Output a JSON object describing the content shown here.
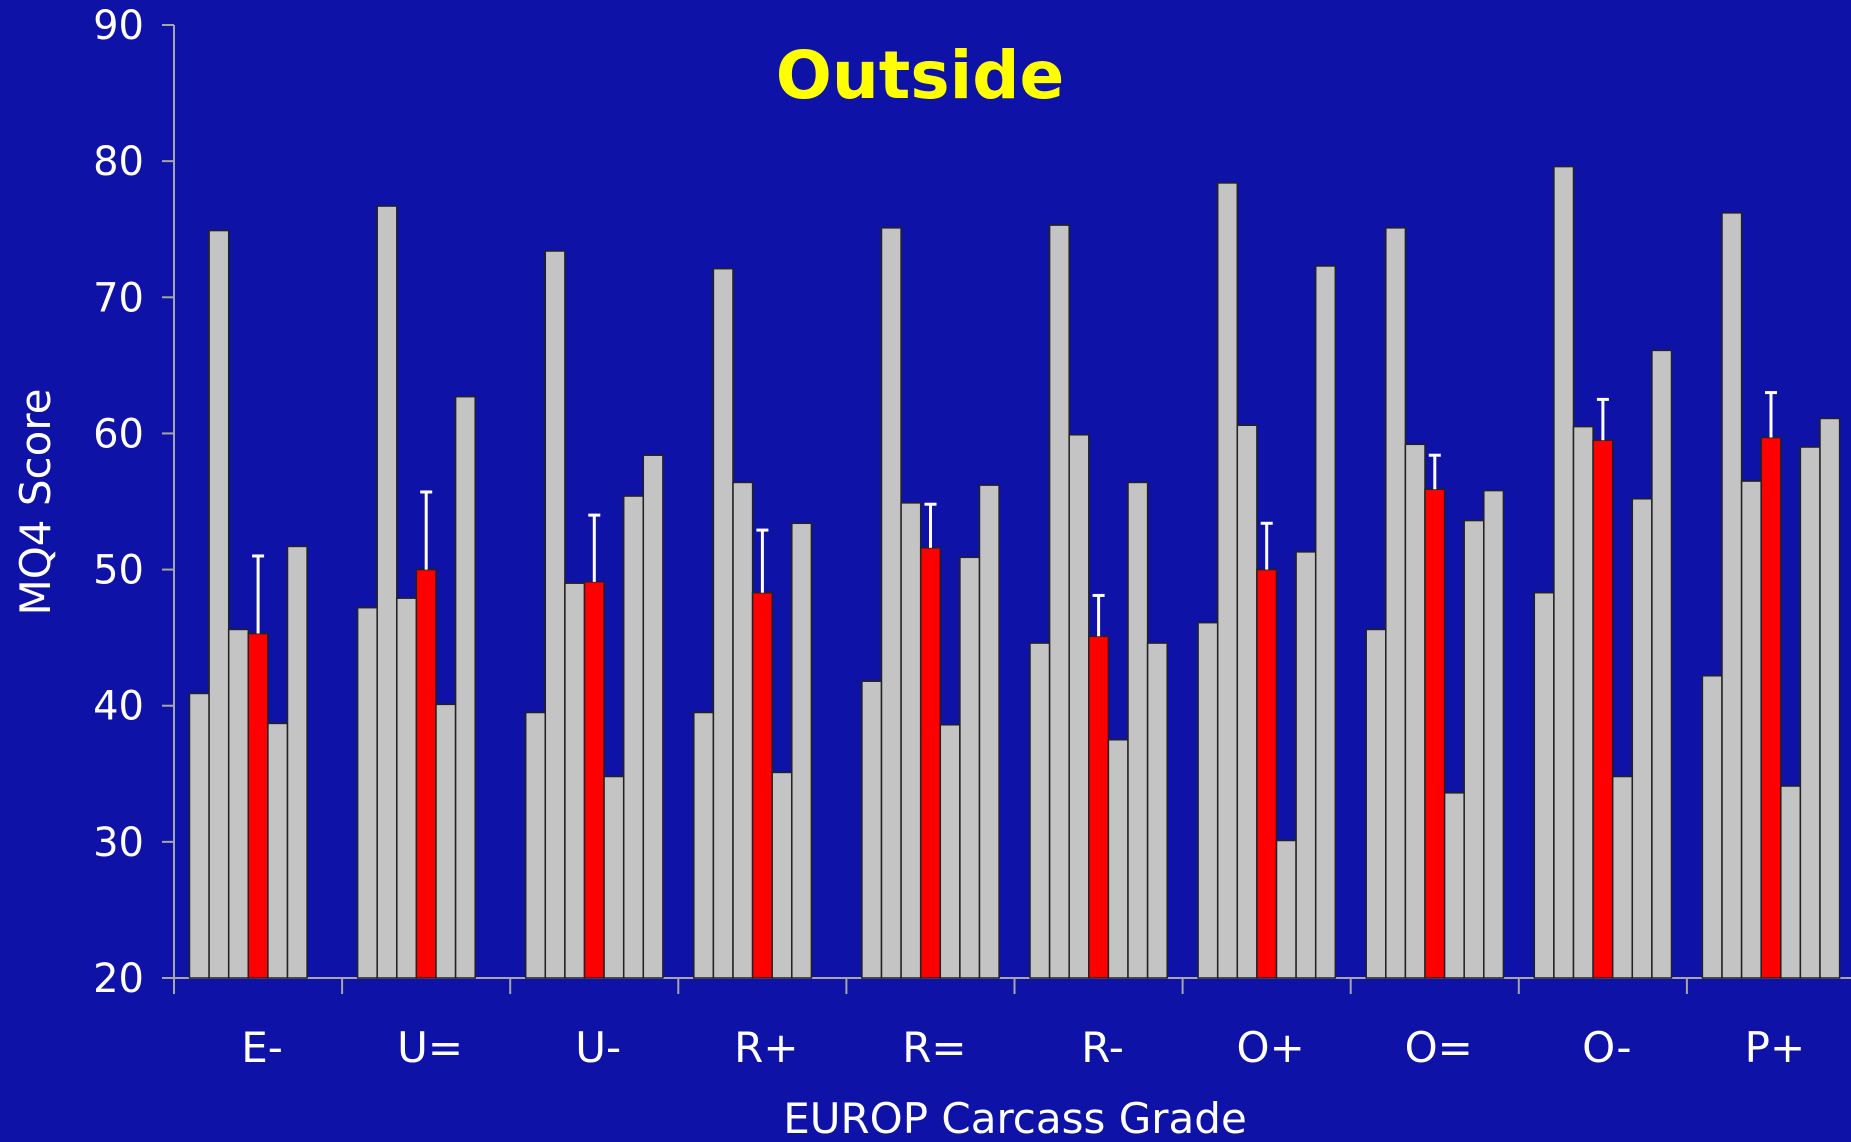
{
  "chart_data": {
    "type": "bar",
    "title": "Outside",
    "xlabel": "EUROP Carcass Grade",
    "ylabel": "MQ4 Score",
    "ylim": [
      20,
      90
    ],
    "yticks": [
      20,
      30,
      40,
      50,
      60,
      70,
      80,
      90
    ],
    "grid": false,
    "legend": "none",
    "categories": [
      "E-",
      "U=",
      "U-",
      "R+",
      "R=",
      "R-",
      "O+",
      "O=",
      "O-",
      "P+"
    ],
    "bars_per_group": 7,
    "highlight_index": 3,
    "values": [
      [
        40.9,
        74.9,
        45.6,
        45.3,
        38.7,
        51.7
      ],
      [
        47.2,
        76.7,
        47.9,
        50.0,
        40.1,
        62.7
      ],
      [
        39.5,
        73.4,
        49.0,
        49.1,
        34.8,
        55.4,
        58.4
      ],
      [
        39.5,
        72.1,
        56.4,
        48.3,
        35.1,
        53.4
      ],
      [
        41.8,
        75.1,
        54.9,
        51.6,
        38.6,
        50.9,
        56.2
      ],
      [
        44.6,
        75.3,
        59.9,
        45.1,
        37.5,
        56.4,
        44.6
      ],
      [
        46.1,
        78.4,
        60.6,
        50.0,
        30.1,
        51.3,
        72.3
      ],
      [
        45.6,
        75.1,
        59.2,
        55.9,
        33.6,
        53.6,
        55.8
      ],
      [
        48.3,
        79.6,
        60.5,
        59.5,
        34.8,
        55.2,
        66.1
      ],
      [
        42.2,
        76.2,
        56.5,
        59.7,
        34.1,
        59.0,
        61.1
      ]
    ],
    "error_upper": [
      51.0,
      55.7,
      54.0,
      52.9,
      54.8,
      48.1,
      53.4,
      58.4,
      62.5,
      63.0
    ],
    "colors": {
      "background": "#0f12a6",
      "bar": "#c4c4c4",
      "highlight_bar": "#ff0000",
      "axis": "#a6a6a6",
      "error_bar": "#ffffff",
      "title": "#ffff00",
      "text": "#ffffff"
    }
  }
}
